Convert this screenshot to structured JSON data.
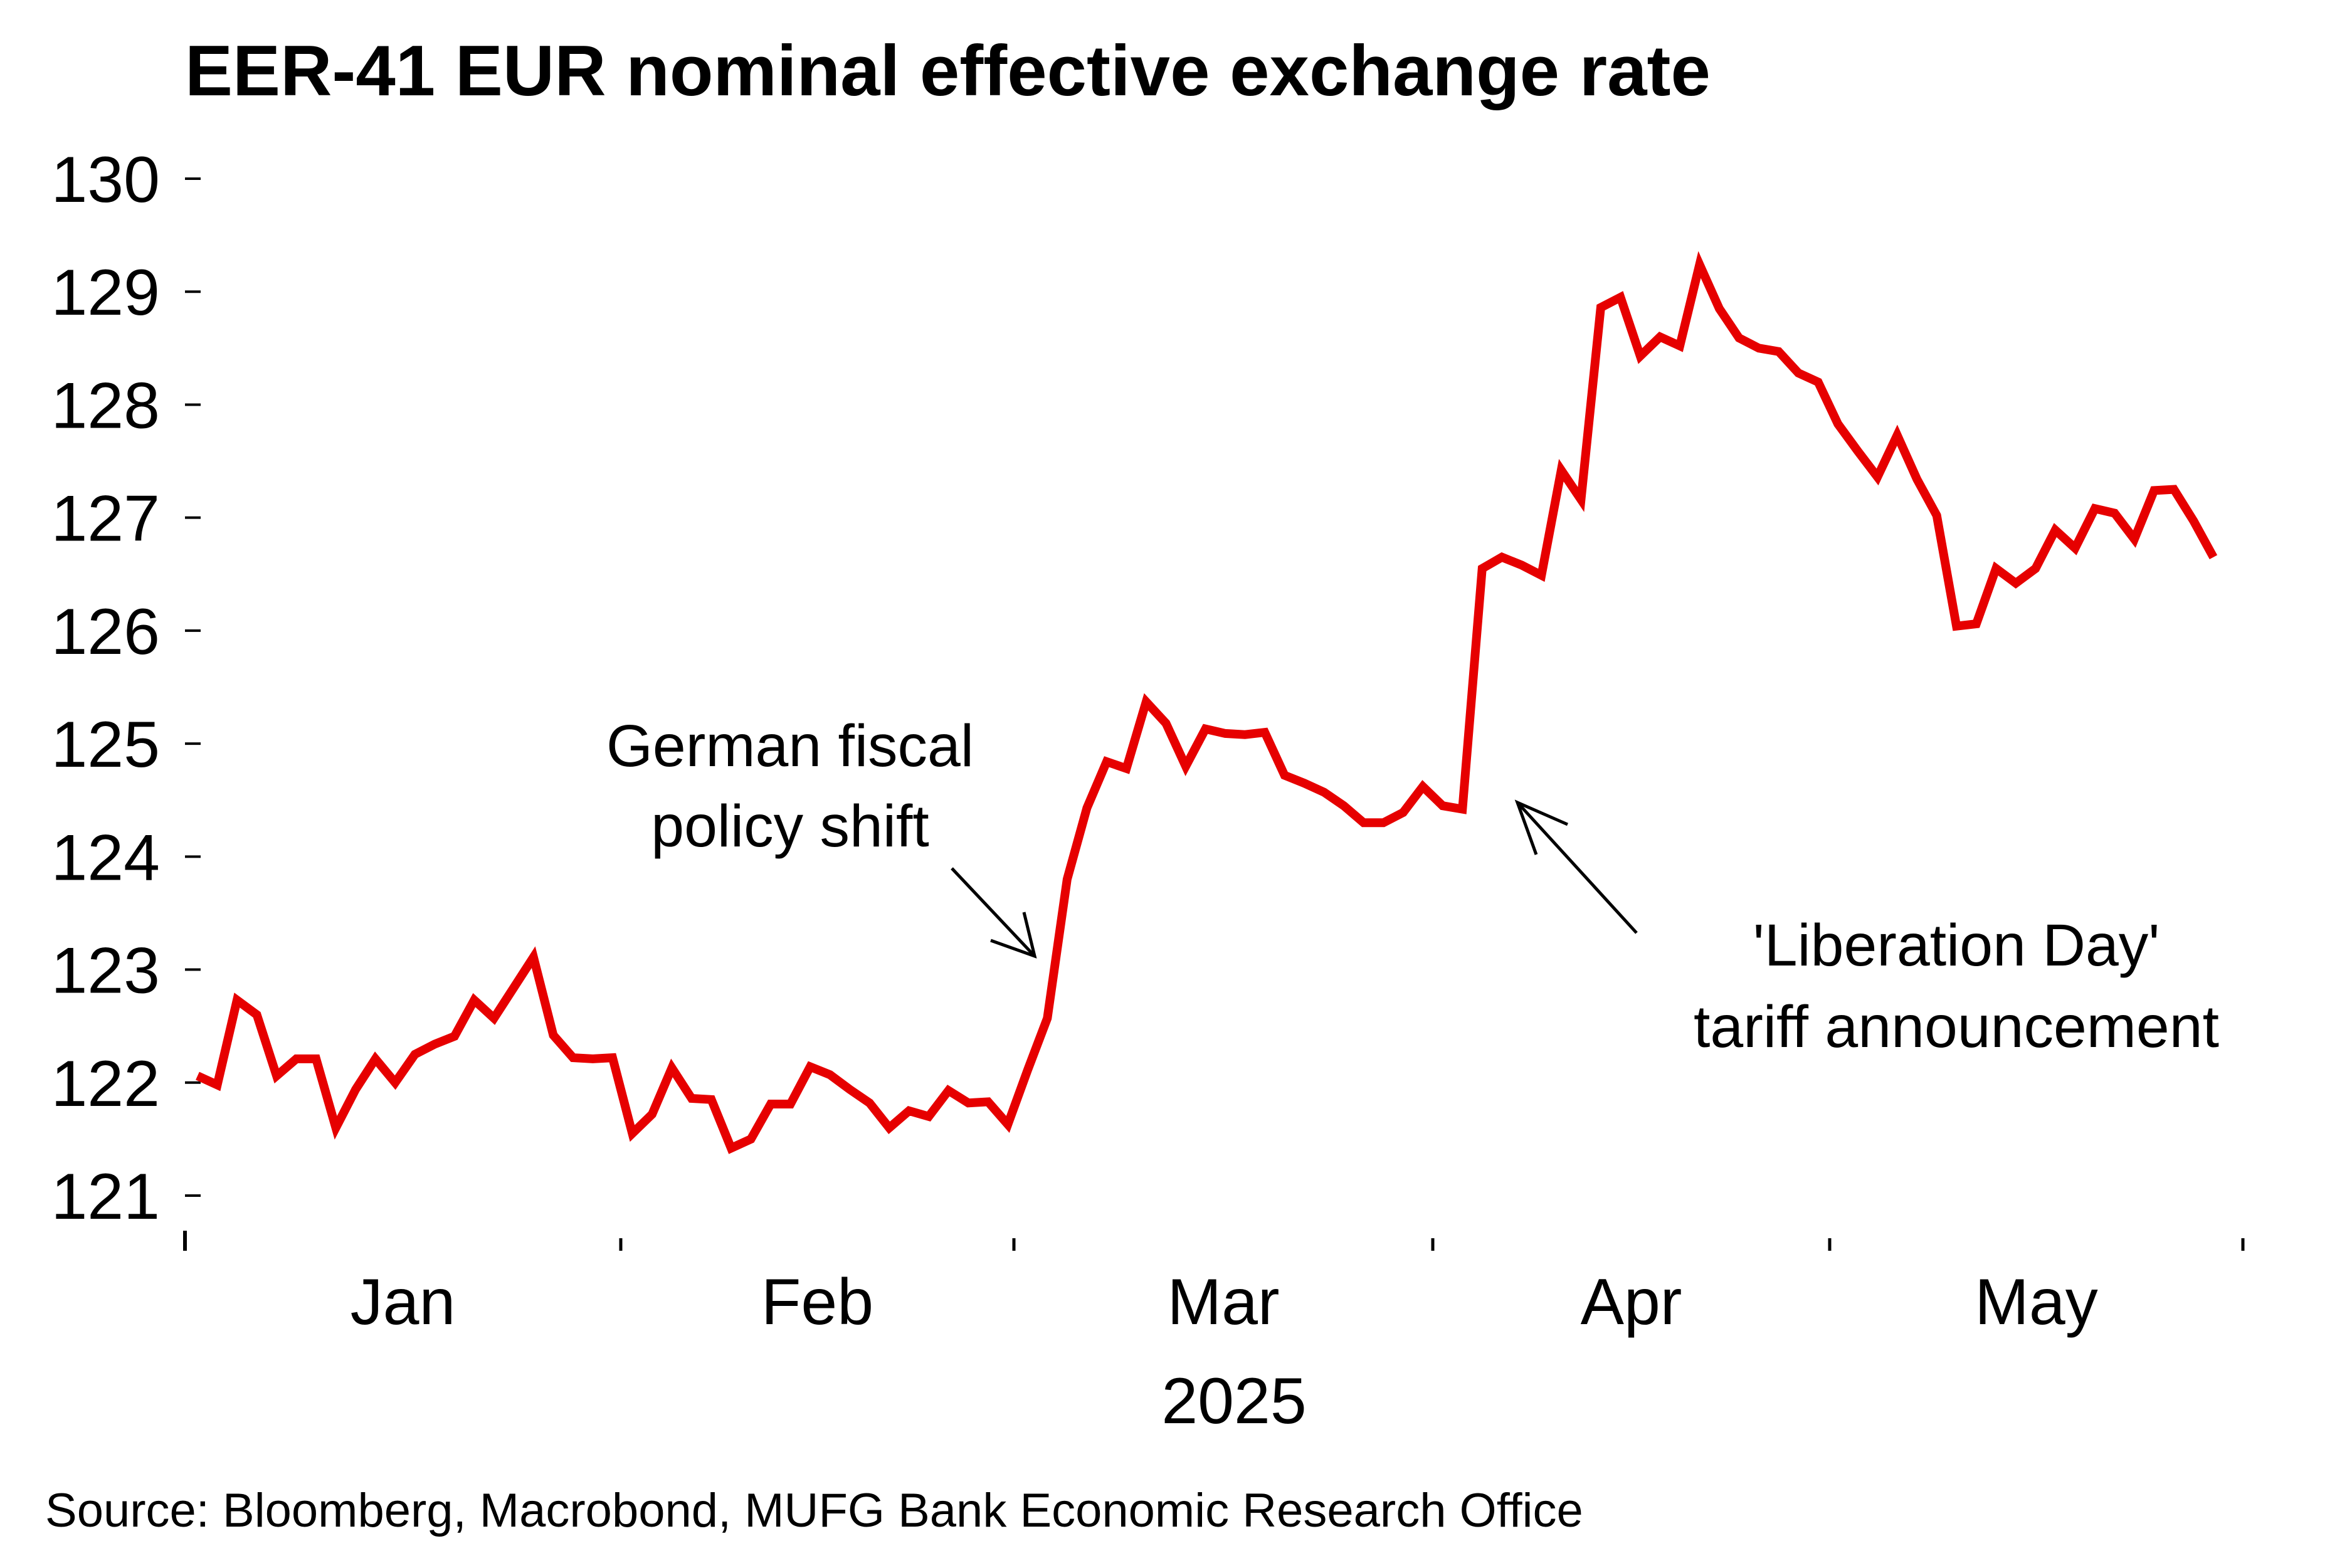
{
  "chart_data": {
    "type": "line",
    "title": "EER-41 EUR nominal effective exchange rate",
    "xlabel": "2025",
    "ylabel": "",
    "ylim": [
      121,
      130
    ],
    "yticks": [
      130,
      129,
      128,
      127,
      126,
      125,
      124,
      123,
      122,
      121
    ],
    "xtick_labels": [
      "Jan",
      "Feb",
      "Mar",
      "Apr",
      "May"
    ],
    "x_axis_year": "2025",
    "grid": false,
    "legend": "none",
    "line_color": "#e60000",
    "series": [
      {
        "name": "EER-41 EUR NEER",
        "frequency": "business days, 2025-01-01 to approx 2025-05-22",
        "values": [
          122.06,
          121.98,
          122.73,
          122.6,
          122.06,
          122.21,
          122.21,
          121.6,
          121.94,
          122.21,
          122.0,
          122.25,
          122.34,
          122.41,
          122.73,
          122.57,
          122.84,
          123.11,
          122.42,
          122.22,
          122.21,
          122.22,
          121.55,
          121.72,
          122.13,
          121.86,
          121.85,
          121.42,
          121.5,
          121.81,
          121.81,
          122.14,
          122.07,
          121.94,
          121.82,
          121.6,
          121.75,
          121.7,
          121.93,
          121.82,
          121.83,
          121.63,
          122.11,
          122.57,
          123.8,
          124.43,
          124.84,
          124.78,
          125.37,
          125.18,
          124.8,
          125.13,
          125.09,
          125.08,
          125.1,
          124.72,
          124.65,
          124.57,
          124.45,
          124.3,
          124.3,
          124.39,
          124.62,
          124.45,
          124.42,
          126.55,
          126.65,
          126.58,
          126.49,
          127.42,
          127.16,
          128.86,
          128.95,
          128.43,
          128.6,
          128.52,
          129.24,
          128.85,
          128.59,
          128.5,
          128.47,
          128.28,
          128.2,
          127.83,
          127.59,
          127.36,
          127.73,
          127.34,
          127.02,
          126.04,
          126.06,
          126.55,
          126.42,
          126.55,
          126.89,
          126.73,
          127.08,
          127.04,
          126.81,
          127.24,
          127.25,
          126.97,
          126.65
        ]
      }
    ],
    "annotations": [
      {
        "lines": [
          "German fiscal",
          "policy shift"
        ],
        "points_to_value": 123.0
      },
      {
        "lines": [
          "'Liberation Day'",
          "tariff announcement"
        ],
        "points_to_value": 124.5
      }
    ],
    "source": "Source: Bloomberg, Macrobond, MUFG Bank Economic Research Office"
  }
}
